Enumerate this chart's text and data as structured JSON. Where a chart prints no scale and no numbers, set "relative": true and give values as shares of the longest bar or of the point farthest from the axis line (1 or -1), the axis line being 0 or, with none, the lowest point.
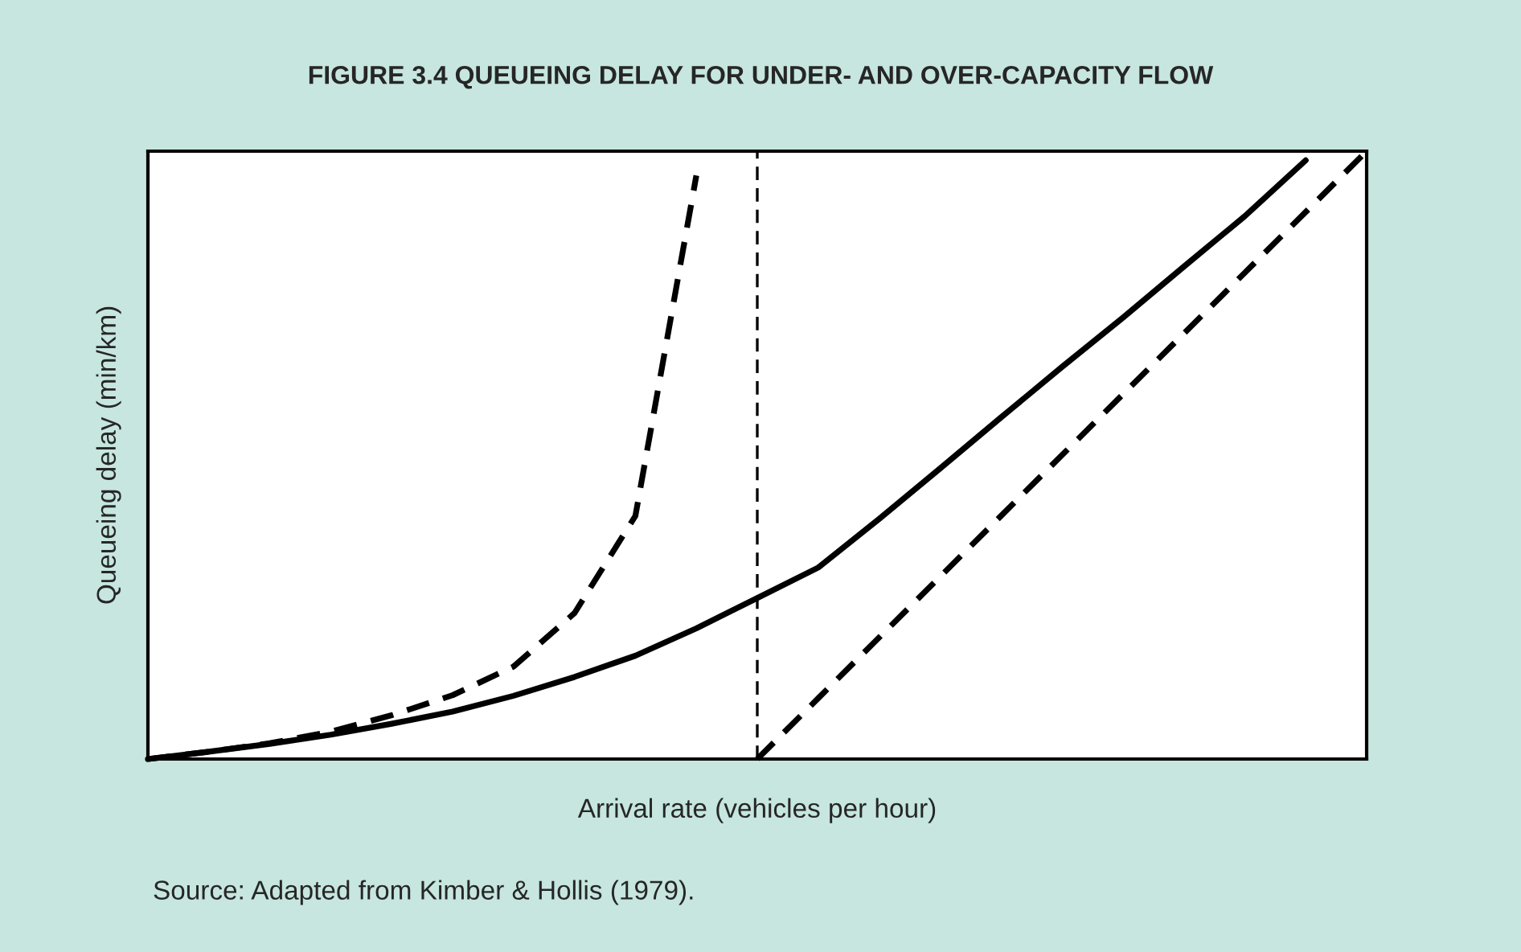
{
  "chart_data": {
    "type": "line",
    "title": "FIGURE 3.4 QUEUEING DELAY FOR UNDER- AND OVER-CAPACITY FLOW",
    "xlabel": "Arrival rate (vehicles per hour)",
    "ylabel": "Queueing delay (min/km)",
    "relative": true,
    "legend": false,
    "marker": "none",
    "categories": [
      null,
      null,
      null,
      null,
      null,
      null,
      null,
      null,
      null,
      null,
      null,
      null,
      null,
      null,
      null,
      null,
      null,
      null,
      null,
      null,
      null
    ],
    "series": [
      {
        "color": "#000000",
        "line_style": "solid",
        "values": [
          0,
          0.012,
          0.025,
          0.04,
          0.058,
          0.078,
          0.104,
          0.135,
          0.17,
          0.215,
          0.265,
          0.315,
          0.395,
          0.478,
          0.562,
          0.645,
          0.726,
          0.81,
          0.893,
          0.985,
          null
        ]
      },
      {
        "color": "#000000",
        "line_style": "dashed",
        "values": [
          0,
          0.012,
          0.026,
          0.045,
          0.072,
          0.105,
          0.152,
          0.24,
          0.4,
          0.96,
          null,
          null,
          null,
          null,
          null,
          null,
          null,
          null,
          null,
          null,
          null
        ]
      },
      {
        "color": "#000000",
        "line_style": "dashed",
        "values": [
          null,
          null,
          null,
          null,
          null,
          null,
          null,
          null,
          null,
          null,
          0,
          0.1,
          0.2,
          0.3,
          0.4,
          0.5,
          0.6,
          0.7,
          0.8,
          0.9,
          1.0
        ]
      }
    ],
    "annotations": [
      "Source: Adapted from Kimber & Hollis (1979)."
    ]
  }
}
